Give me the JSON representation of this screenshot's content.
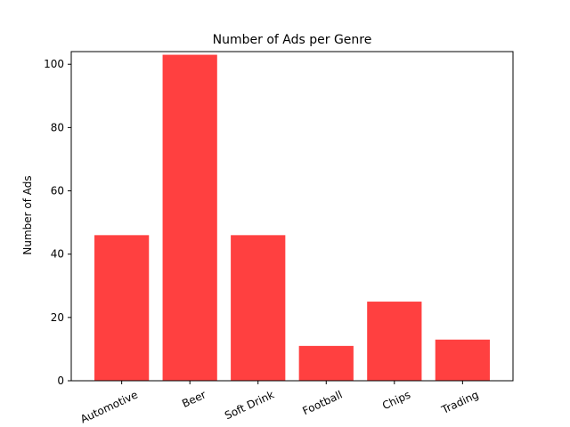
{
  "chart_data": {
    "type": "bar",
    "title": "Number of Ads per Genre",
    "xlabel": "",
    "ylabel": "Number of Ads",
    "categories": [
      "Automotive",
      "Beer",
      "Soft Drink",
      "Football",
      "Chips",
      "Trading"
    ],
    "values": [
      46,
      103,
      46,
      11,
      25,
      13
    ],
    "ylim": [
      0,
      104
    ],
    "yticks": [
      0,
      20,
      40,
      60,
      80,
      100
    ],
    "grid": false,
    "legend": "none",
    "bar_color": "#ff4040",
    "xtick_rotation_deg": 25
  }
}
